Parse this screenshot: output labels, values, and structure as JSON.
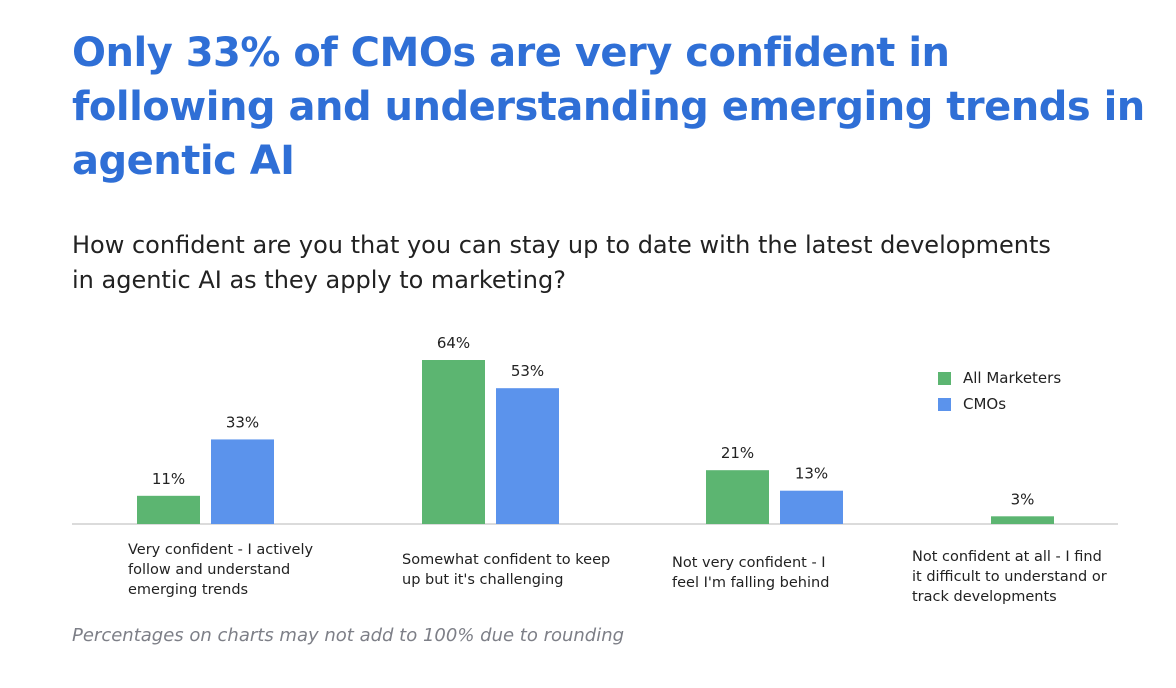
{
  "header": {
    "title": "Only 33% of CMOs are very confident in following and understanding emerging trends in agentic AI",
    "subtitle": "How confident are you that you can stay up to date with the latest developments in agentic AI as they apply to marketing?"
  },
  "footnote": "Percentages on charts may not add to 100% due to rounding",
  "chart_data": {
    "type": "bar",
    "title": "Only 33% of CMOs are very confident in following and understanding emerging trends in agentic AI",
    "subtitle": "How confident are you that you can stay up to date with the latest developments in agentic AI as they apply to marketing?",
    "xlabel": "",
    "ylabel": "",
    "ylim": [
      0,
      64
    ],
    "grid": false,
    "legend_position": "top-right",
    "categories": [
      "Very confident - I actively follow and understand emerging trends",
      "Somewhat confident to keep up but it's challenging",
      "Not very confident - I feel I'm falling behind",
      "Not confident at all - I find it difficult to understand or track developments"
    ],
    "series": [
      {
        "name": "All Marketers",
        "color": "#5cb571",
        "values": [
          11,
          64,
          21,
          3
        ],
        "labels": [
          "11%",
          "64%",
          "21%",
          "3%"
        ]
      },
      {
        "name": "CMOs",
        "color": "#5b93ec",
        "values": [
          33,
          53,
          13,
          null
        ],
        "labels": [
          "33%",
          "53%",
          "13%",
          ""
        ]
      }
    ],
    "annotations": [
      "Percentages on charts may not add to 100% due to rounding"
    ]
  }
}
